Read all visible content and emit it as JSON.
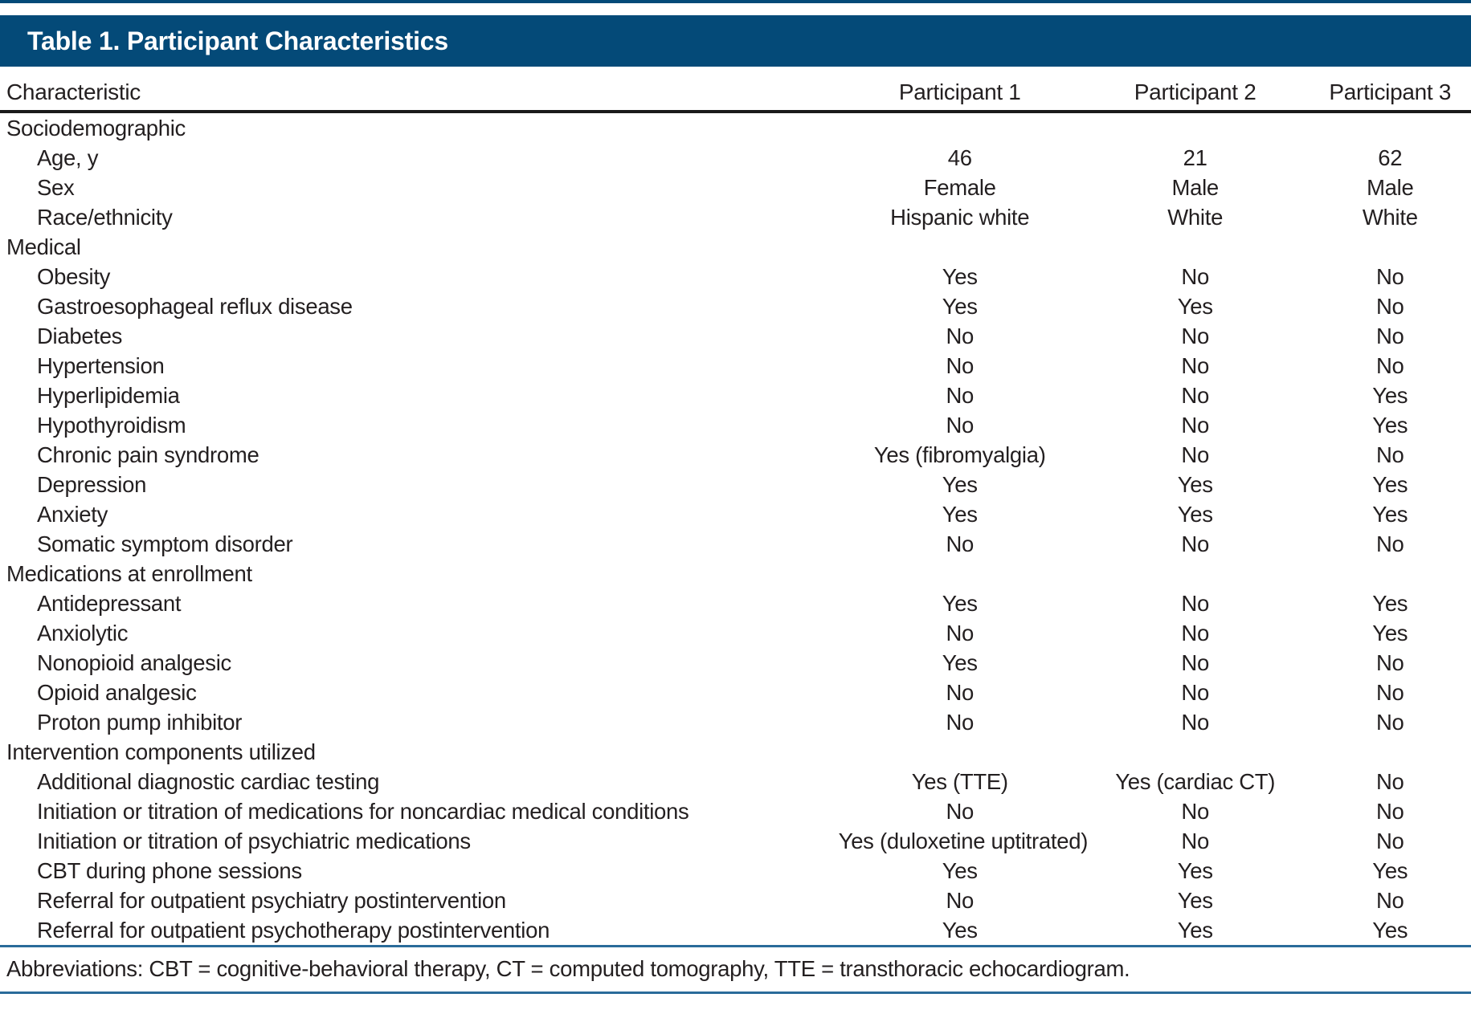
{
  "title": "Table 1. Participant Characteristics",
  "columns": [
    "Characteristic",
    "Participant 1",
    "Participant 2",
    "Participant 3"
  ],
  "rows": [
    {
      "type": "section",
      "label": "Sociodemographic"
    },
    {
      "type": "item",
      "label": "Age, y",
      "values": [
        "46",
        "21",
        "62"
      ]
    },
    {
      "type": "item",
      "label": "Sex",
      "values": [
        "Female",
        "Male",
        "Male"
      ]
    },
    {
      "type": "item",
      "label": "Race/ethnicity",
      "values": [
        "Hispanic white",
        "White",
        "White"
      ]
    },
    {
      "type": "section",
      "label": "Medical"
    },
    {
      "type": "item",
      "label": "Obesity",
      "values": [
        "Yes",
        "No",
        "No"
      ]
    },
    {
      "type": "item",
      "label": "Gastroesophageal reflux disease",
      "values": [
        "Yes",
        "Yes",
        "No"
      ]
    },
    {
      "type": "item",
      "label": "Diabetes",
      "values": [
        "No",
        "No",
        "No"
      ]
    },
    {
      "type": "item",
      "label": "Hypertension",
      "values": [
        "No",
        "No",
        "No"
      ]
    },
    {
      "type": "item",
      "label": "Hyperlipidemia",
      "values": [
        "No",
        "No",
        "Yes"
      ]
    },
    {
      "type": "item",
      "label": "Hypothyroidism",
      "values": [
        "No",
        "No",
        "Yes"
      ]
    },
    {
      "type": "item",
      "label": "Chronic pain syndrome",
      "values": [
        "Yes (fibromyalgia)",
        "No",
        "No"
      ]
    },
    {
      "type": "item",
      "label": "Depression",
      "values": [
        "Yes",
        "Yes",
        "Yes"
      ]
    },
    {
      "type": "item",
      "label": "Anxiety",
      "values": [
        "Yes",
        "Yes",
        "Yes"
      ]
    },
    {
      "type": "item",
      "label": "Somatic symptom disorder",
      "values": [
        "No",
        "No",
        "No"
      ]
    },
    {
      "type": "section",
      "label": "Medications at enrollment"
    },
    {
      "type": "item",
      "label": "Antidepressant",
      "values": [
        "Yes",
        "No",
        "Yes"
      ]
    },
    {
      "type": "item",
      "label": "Anxiolytic",
      "values": [
        "No",
        "No",
        "Yes"
      ]
    },
    {
      "type": "item",
      "label": "Nonopioid analgesic",
      "values": [
        "Yes",
        "No",
        "No"
      ]
    },
    {
      "type": "item",
      "label": "Opioid analgesic",
      "values": [
        "No",
        "No",
        "No"
      ]
    },
    {
      "type": "item",
      "label": "Proton pump inhibitor",
      "values": [
        "No",
        "No",
        "No"
      ]
    },
    {
      "type": "section",
      "label": "Intervention components utilized"
    },
    {
      "type": "item",
      "label": "Additional diagnostic cardiac testing",
      "values": [
        "Yes (TTE)",
        "Yes (cardiac CT)",
        "No"
      ]
    },
    {
      "type": "item",
      "label": "Initiation or titration of medications for noncardiac medical conditions",
      "values": [
        "No",
        "No",
        "No"
      ]
    },
    {
      "type": "item",
      "label": "Initiation or titration of psychiatric medications",
      "values": [
        "Yes (duloxetine uptitrated)",
        "No",
        "No"
      ]
    },
    {
      "type": "item",
      "label": "CBT during phone sessions",
      "values": [
        "Yes",
        "Yes",
        "Yes"
      ]
    },
    {
      "type": "item",
      "label": "Referral for outpatient psychiatry postintervention",
      "values": [
        "No",
        "Yes",
        "No"
      ]
    },
    {
      "type": "item",
      "label": "Referral for outpatient psychotherapy postintervention",
      "values": [
        "Yes",
        "Yes",
        "Yes"
      ]
    }
  ],
  "footnote": "Abbreviations: CBT = cognitive-behavioral therapy, CT = computed tomography, TTE = transthoracic echocardiogram.",
  "colors": {
    "navy": "#044a78",
    "rule_blue": "#2a6b9a",
    "text": "#231f20"
  }
}
